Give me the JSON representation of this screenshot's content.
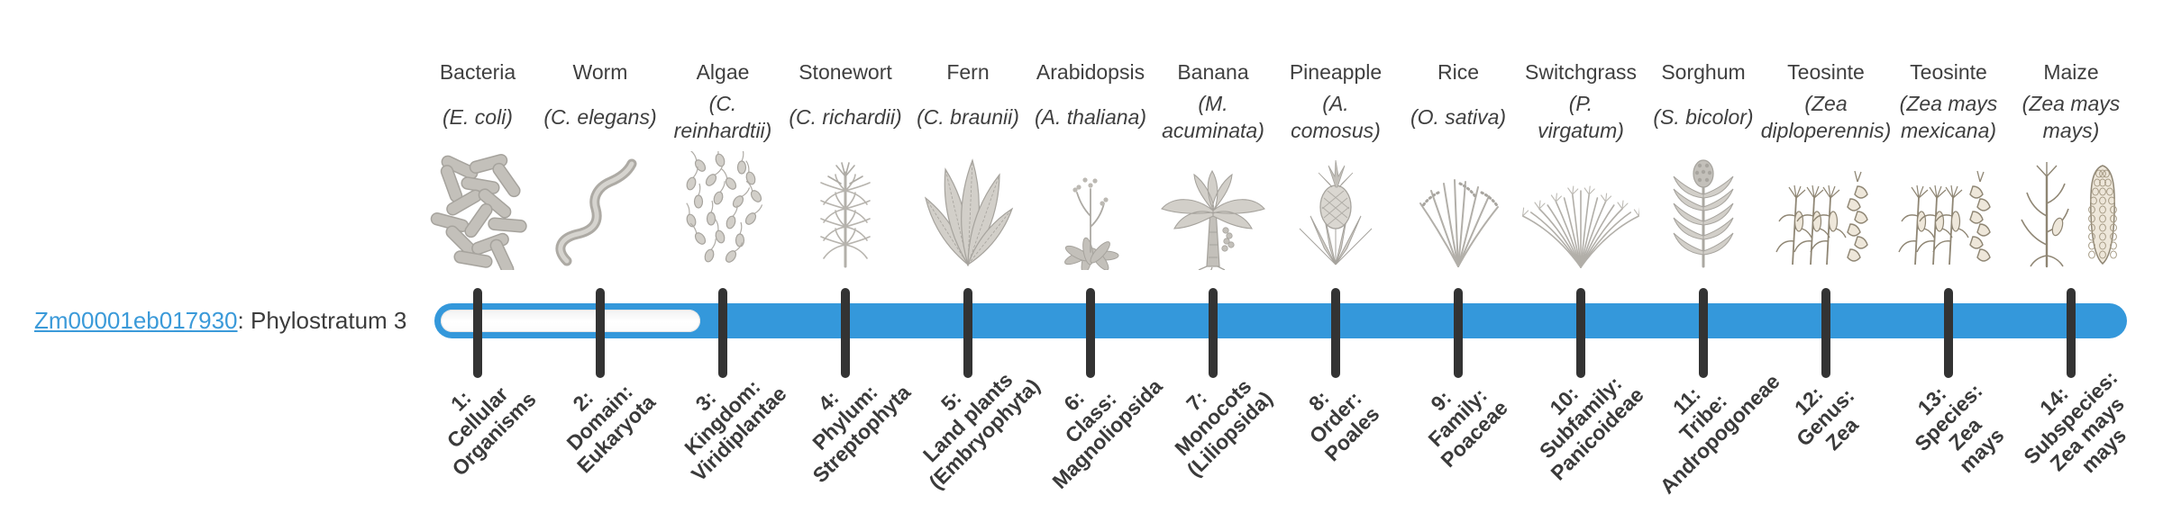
{
  "gene": {
    "id": "Zm00001eb017930",
    "suffix": ": Phylostratum 3"
  },
  "phylostratum": 3,
  "colors": {
    "bar_filled": "#3498db",
    "bar_unfilled": "#fbfbfb",
    "tick": "#333333",
    "link": "#3b9ad9",
    "text": "#3c3c3c",
    "axis_label": "#3a3a3a"
  },
  "strata": [
    {
      "num": 1,
      "organism": "Bacteria",
      "species": "(E. coli)",
      "tick_label": "1:\nCellular\nOrganisms",
      "icon": "bacteria",
      "filled": false
    },
    {
      "num": 2,
      "organism": "Worm",
      "species": "(C. elegans)",
      "tick_label": "2:\nDomain:\nEukaryota",
      "icon": "worm",
      "filled": false
    },
    {
      "num": 3,
      "organism": "Algae",
      "species": "(C.\nreinhardtii)",
      "tick_label": "3:\nKingdom:\nViridiplantae",
      "icon": "algae",
      "filled": true
    },
    {
      "num": 4,
      "organism": "Stonewort",
      "species": "(C. richardii)",
      "tick_label": "4:\nPhylum:\nStreptophyta",
      "icon": "stonewort",
      "filled": true
    },
    {
      "num": 5,
      "organism": "Fern",
      "species": "(C. braunii)",
      "tick_label": "5:\nLand plants\n(Embryophyta)",
      "icon": "fern",
      "filled": true
    },
    {
      "num": 6,
      "organism": "Arabidopsis",
      "species": "(A. thaliana)",
      "tick_label": "6:\nClass:\nMagnoliopsida",
      "icon": "arabidopsis",
      "filled": true
    },
    {
      "num": 7,
      "organism": "Banana",
      "species": "(M.\nacuminata)",
      "tick_label": "7:\nMonocots\n(Liliopsida)",
      "icon": "banana",
      "filled": true
    },
    {
      "num": 8,
      "organism": "Pineapple",
      "species": "(A.\ncomosus)",
      "tick_label": "8:\nOrder:\nPoales",
      "icon": "pineapple",
      "filled": true
    },
    {
      "num": 9,
      "organism": "Rice",
      "species": "(O. sativa)",
      "tick_label": "9:\nFamily:\nPoaceae",
      "icon": "rice",
      "filled": true
    },
    {
      "num": 10,
      "organism": "Switchgrass",
      "species": "(P.\nvirgatum)",
      "tick_label": "10:\nSubfamily:\nPanicoideae",
      "icon": "switchgrass",
      "filled": true
    },
    {
      "num": 11,
      "organism": "Sorghum",
      "species": "(S. bicolor)",
      "tick_label": "11:\nTribe:\nAndropogoneae",
      "icon": "sorghum",
      "filled": true
    },
    {
      "num": 12,
      "organism": "Teosinte",
      "species": "(Zea\ndiploperennis)",
      "tick_label": "12:\nGenus:\nZea",
      "icon": "teosinte",
      "filled": true
    },
    {
      "num": 13,
      "organism": "Teosinte",
      "species": "(Zea mays\nmexicana)",
      "tick_label": "13:\nSpecies:\nZea\nmays",
      "icon": "teosinte2",
      "filled": true
    },
    {
      "num": 14,
      "organism": "Maize",
      "species": "(Zea mays\nmays)",
      "tick_label": "14:\nSubspecies:\nZea mays\nmays",
      "icon": "maize",
      "filled": true
    }
  ]
}
